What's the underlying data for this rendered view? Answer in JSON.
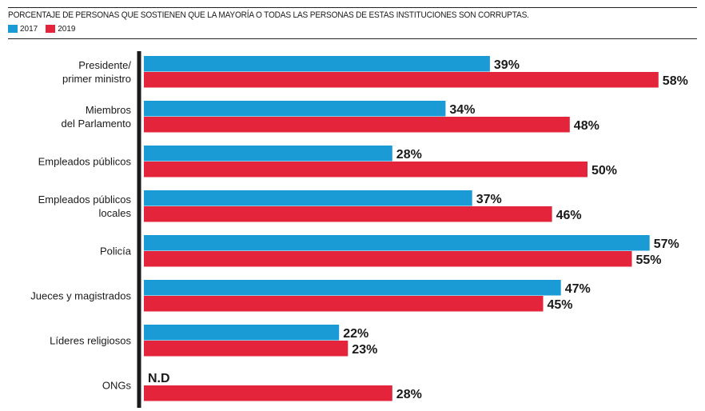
{
  "chart_data": {
    "type": "bar",
    "orientation": "horizontal",
    "title": "PORCENTAJE DE PERSONAS QUE SOSTIENEN QUE LA MAYORÍA O TODAS LAS PERSONAS DE ESTAS INSTITUCIONES SON CORRUPTAS.",
    "categories": [
      [
        "Presidente/",
        "primer ministro"
      ],
      [
        "Miembros",
        "del Parlamento"
      ],
      [
        "Empleados públicos"
      ],
      [
        "Empleados públicos",
        "locales"
      ],
      [
        "Policía"
      ],
      [
        "Jueces y magistrados"
      ],
      [
        "Líderes religiosos"
      ],
      [
        "ONGs"
      ]
    ],
    "series": [
      {
        "name": "2017",
        "color": "#1a9bd5",
        "values": [
          39,
          34,
          28,
          37,
          57,
          47,
          22,
          null
        ],
        "labels": [
          "39%",
          "34%",
          "28%",
          "37%",
          "57%",
          "47%",
          "22%",
          "N.D"
        ]
      },
      {
        "name": "2019",
        "color": "#e3243b",
        "values": [
          58,
          48,
          50,
          46,
          55,
          45,
          23,
          28
        ],
        "labels": [
          "58%",
          "48%",
          "50%",
          "46%",
          "55%",
          "45%",
          "23%",
          "28%"
        ]
      }
    ],
    "xlim": [
      0,
      60
    ],
    "grid": false,
    "legend": "top-left"
  }
}
